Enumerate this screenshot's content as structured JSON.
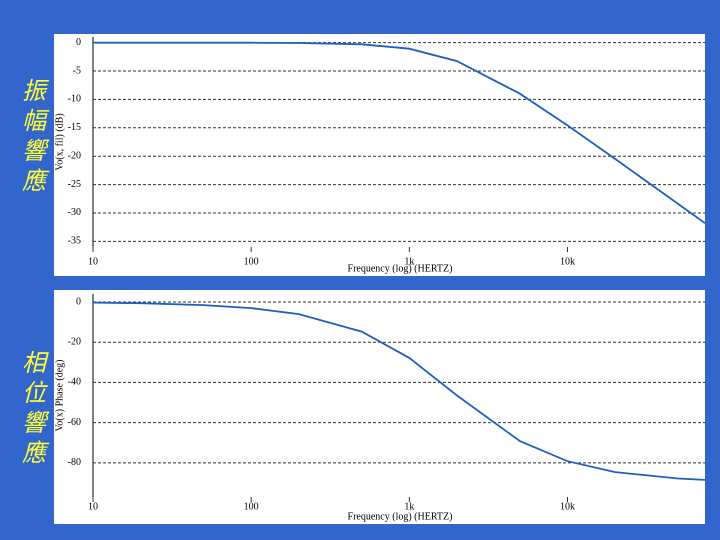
{
  "side_labels": [
    "振幅響應",
    "相位響應"
  ],
  "chart_data": [
    {
      "type": "line",
      "y_label": "Vo(x, fil) (dB)",
      "x_label": "Frequency (log) (HERTZ)",
      "x_scale": "log",
      "xlim": [
        10,
        74000
      ],
      "ylim": [
        -36,
        1
      ],
      "xticks": [
        10,
        {
          "value": 100,
          "label": "100"
        },
        {
          "value": 1000,
          "label": "1k"
        },
        {
          "value": 10000,
          "label": "10k"
        }
      ],
      "yticks": [
        0,
        -5,
        -10,
        -15,
        -20,
        -25,
        -30,
        -35
      ],
      "grid": true,
      "series": [
        {
          "color": "#1f5fbf",
          "x": [
            10,
            20,
            50,
            100,
            200,
            500,
            1000,
            2000,
            5000,
            10000,
            20000,
            50000,
            74000
          ],
          "values": [
            0,
            0,
            0,
            -0.01,
            -0.05,
            -0.29,
            -1.06,
            -3.24,
            -8.99,
            -14.58,
            -20.48,
            -28.41,
            -31.8
          ]
        }
      ]
    },
    {
      "type": "line",
      "y_label": "Vo(x) Phase (deg)",
      "x_label": "Frequency (log) (HERTZ)",
      "x_scale": "log",
      "xlim": [
        10,
        74000
      ],
      "ylim": [
        -97,
        4
      ],
      "xticks": [
        10,
        {
          "value": 100,
          "label": "100"
        },
        {
          "value": 1000,
          "label": "1k"
        },
        {
          "value": 10000,
          "label": "10k"
        }
      ],
      "yticks": [
        0,
        -20,
        -40,
        -60,
        -80
      ],
      "grid": true,
      "series": [
        {
          "color": "#1f5fbf",
          "x": [
            10,
            20,
            50,
            100,
            200,
            500,
            1000,
            2000,
            5000,
            10000,
            20000,
            50000,
            74000
          ],
          "values": [
            -0.3,
            -0.6,
            -1.5,
            -3.0,
            -6.0,
            -14.7,
            -27.8,
            -46.5,
            -69.2,
            -79.2,
            -84.6,
            -87.8,
            -88.5
          ]
        }
      ]
    }
  ]
}
